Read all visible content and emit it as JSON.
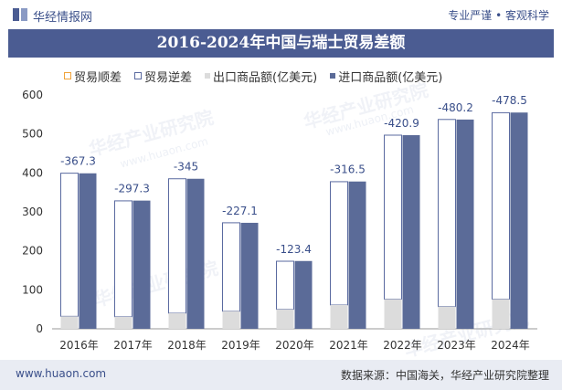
{
  "header": {
    "site_name": "华经情报网",
    "slogan": "专业严谨 • 客观科学"
  },
  "watermark": {
    "text": "华经产业研究院",
    "url": "www.huaon.com"
  },
  "chart_data": {
    "type": "bar",
    "title": "2016-2024年中国与瑞士贸易差额",
    "categories": [
      "2016年",
      "2017年",
      "2018年",
      "2019年",
      "2020年",
      "2021年",
      "2022年",
      "2023年",
      "2024年"
    ],
    "legend": [
      "贸易顺差",
      "贸易逆差",
      "出口商品额(亿美元)",
      "进口商品额(亿美元)"
    ],
    "series": [
      {
        "name": "出口商品额(亿美元)",
        "values": [
          32,
          31,
          40,
          45,
          50,
          61,
          76,
          57,
          76
        ]
      },
      {
        "name": "进口商品额(亿美元)",
        "values": [
          399,
          329,
          385,
          272,
          174,
          378,
          497,
          537,
          555
        ]
      },
      {
        "name": "贸易逆差",
        "values": [
          -367.3,
          -297.3,
          -345,
          -227.1,
          -123.4,
          -316.5,
          -420.9,
          -480.2,
          -478.5
        ]
      }
    ],
    "data_labels": [
      "-367.3",
      "-297.3",
      "-345",
      "-227.1",
      "-123.4",
      "-316.5",
      "-420.9",
      "-480.2",
      "-478.5"
    ],
    "y_ticks": [
      "0",
      "100",
      "200",
      "300",
      "400",
      "500",
      "600"
    ],
    "ylim": [
      0,
      600
    ],
    "xlabel": "",
    "ylabel": "",
    "colors": {
      "export": "#dcdcdc",
      "import": "#5b6b98",
      "deficit_outline": "#5a6aa0",
      "surplus_outline": "#f0a33a",
      "label": "#3a4f8a"
    }
  },
  "footer": {
    "website": "www.huaon.com",
    "source": "数据来源：中国海关，华经产业研究院整理"
  }
}
